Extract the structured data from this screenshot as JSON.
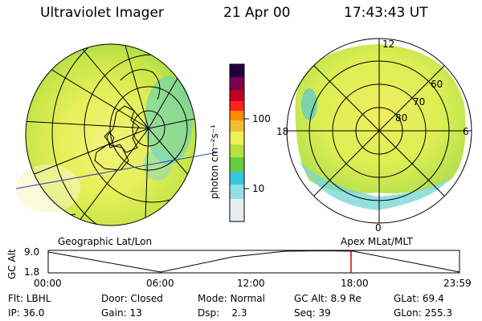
{
  "header": {
    "instrument": "Ultraviolet Imager",
    "date": "21 Apr 00",
    "time": "17:43:43 UT"
  },
  "colorbar": {
    "unit_label": "photon cm⁻²s⁻¹",
    "ticks": [
      "100",
      "10"
    ],
    "scale": "log",
    "colors": [
      "#e8eef0",
      "#8fe0e6",
      "#36c8d8",
      "#66cc44",
      "#b8e23c",
      "#ecf25a",
      "#f0c030",
      "#ff8c00",
      "#ff2020",
      "#c00020",
      "#7a0050",
      "#200040"
    ]
  },
  "maps": {
    "left_label": "Geographic Lat/Lon",
    "right_label": "Apex MLat/MLT",
    "mlt_labels": {
      "top": "12",
      "left": "18",
      "right": "6",
      "bottom": "0"
    },
    "mlat_labels": [
      "60",
      "70",
      "80"
    ]
  },
  "altitude_plot": {
    "ylabel": "GC Alt",
    "yticks": [
      "9.0",
      "1.8"
    ],
    "xticks": [
      "00:00",
      "06:00",
      "12:00",
      "18:00",
      "23:59"
    ],
    "marker_time": "17:43",
    "marker_color": "#cc0000"
  },
  "status": {
    "row1": [
      {
        "label": "Flt:",
        "value": "LBHL"
      },
      {
        "label": "Door:",
        "value": "Closed"
      },
      {
        "label": "Mode:",
        "value": "Normal"
      },
      {
        "label": "GC Alt:",
        "value": "8.9 Re"
      },
      {
        "label": "GLat:",
        "value": "69.4"
      }
    ],
    "row2": [
      {
        "label": "IP:",
        "value": "36.0"
      },
      {
        "label": "Gain:",
        "value": "13"
      },
      {
        "label": "Dsp:",
        "value": "2.3"
      },
      {
        "label": "Seq:",
        "value": "39"
      },
      {
        "label": "GLon:",
        "value": "255.3"
      }
    ]
  }
}
